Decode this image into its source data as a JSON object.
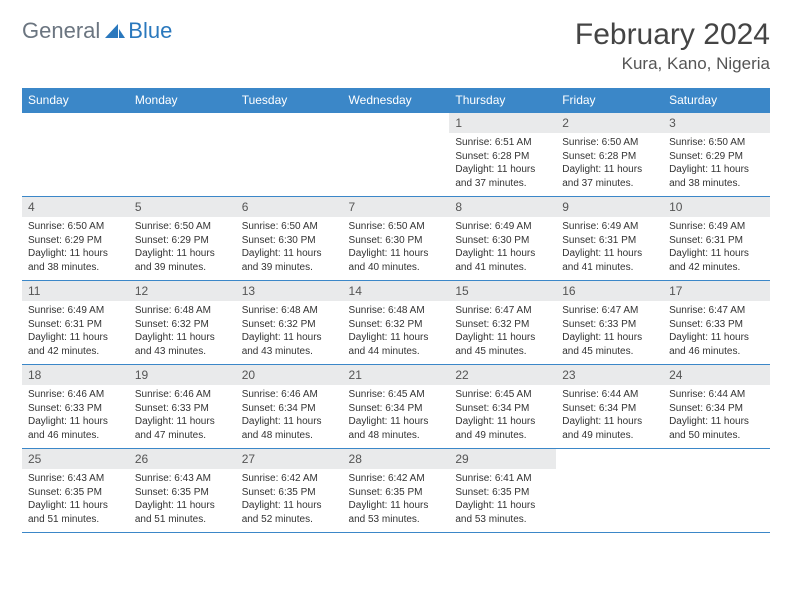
{
  "brand": {
    "part1": "General",
    "part2": "Blue"
  },
  "title": "February 2024",
  "location": "Kura, Kano, Nigeria",
  "colors": {
    "header_bg": "#3b87c8",
    "daynum_bg": "#e9eaeb",
    "brand_blue": "#2a78bd",
    "brand_gray": "#6b7580"
  },
  "weekdays": [
    "Sunday",
    "Monday",
    "Tuesday",
    "Wednesday",
    "Thursday",
    "Friday",
    "Saturday"
  ],
  "weeks": [
    [
      {
        "n": "",
        "sr": "",
        "ss": "",
        "dl": ""
      },
      {
        "n": "",
        "sr": "",
        "ss": "",
        "dl": ""
      },
      {
        "n": "",
        "sr": "",
        "ss": "",
        "dl": ""
      },
      {
        "n": "",
        "sr": "",
        "ss": "",
        "dl": ""
      },
      {
        "n": "1",
        "sr": "Sunrise: 6:51 AM",
        "ss": "Sunset: 6:28 PM",
        "dl": "Daylight: 11 hours and 37 minutes."
      },
      {
        "n": "2",
        "sr": "Sunrise: 6:50 AM",
        "ss": "Sunset: 6:28 PM",
        "dl": "Daylight: 11 hours and 37 minutes."
      },
      {
        "n": "3",
        "sr": "Sunrise: 6:50 AM",
        "ss": "Sunset: 6:29 PM",
        "dl": "Daylight: 11 hours and 38 minutes."
      }
    ],
    [
      {
        "n": "4",
        "sr": "Sunrise: 6:50 AM",
        "ss": "Sunset: 6:29 PM",
        "dl": "Daylight: 11 hours and 38 minutes."
      },
      {
        "n": "5",
        "sr": "Sunrise: 6:50 AM",
        "ss": "Sunset: 6:29 PM",
        "dl": "Daylight: 11 hours and 39 minutes."
      },
      {
        "n": "6",
        "sr": "Sunrise: 6:50 AM",
        "ss": "Sunset: 6:30 PM",
        "dl": "Daylight: 11 hours and 39 minutes."
      },
      {
        "n": "7",
        "sr": "Sunrise: 6:50 AM",
        "ss": "Sunset: 6:30 PM",
        "dl": "Daylight: 11 hours and 40 minutes."
      },
      {
        "n": "8",
        "sr": "Sunrise: 6:49 AM",
        "ss": "Sunset: 6:30 PM",
        "dl": "Daylight: 11 hours and 41 minutes."
      },
      {
        "n": "9",
        "sr": "Sunrise: 6:49 AM",
        "ss": "Sunset: 6:31 PM",
        "dl": "Daylight: 11 hours and 41 minutes."
      },
      {
        "n": "10",
        "sr": "Sunrise: 6:49 AM",
        "ss": "Sunset: 6:31 PM",
        "dl": "Daylight: 11 hours and 42 minutes."
      }
    ],
    [
      {
        "n": "11",
        "sr": "Sunrise: 6:49 AM",
        "ss": "Sunset: 6:31 PM",
        "dl": "Daylight: 11 hours and 42 minutes."
      },
      {
        "n": "12",
        "sr": "Sunrise: 6:48 AM",
        "ss": "Sunset: 6:32 PM",
        "dl": "Daylight: 11 hours and 43 minutes."
      },
      {
        "n": "13",
        "sr": "Sunrise: 6:48 AM",
        "ss": "Sunset: 6:32 PM",
        "dl": "Daylight: 11 hours and 43 minutes."
      },
      {
        "n": "14",
        "sr": "Sunrise: 6:48 AM",
        "ss": "Sunset: 6:32 PM",
        "dl": "Daylight: 11 hours and 44 minutes."
      },
      {
        "n": "15",
        "sr": "Sunrise: 6:47 AM",
        "ss": "Sunset: 6:32 PM",
        "dl": "Daylight: 11 hours and 45 minutes."
      },
      {
        "n": "16",
        "sr": "Sunrise: 6:47 AM",
        "ss": "Sunset: 6:33 PM",
        "dl": "Daylight: 11 hours and 45 minutes."
      },
      {
        "n": "17",
        "sr": "Sunrise: 6:47 AM",
        "ss": "Sunset: 6:33 PM",
        "dl": "Daylight: 11 hours and 46 minutes."
      }
    ],
    [
      {
        "n": "18",
        "sr": "Sunrise: 6:46 AM",
        "ss": "Sunset: 6:33 PM",
        "dl": "Daylight: 11 hours and 46 minutes."
      },
      {
        "n": "19",
        "sr": "Sunrise: 6:46 AM",
        "ss": "Sunset: 6:33 PM",
        "dl": "Daylight: 11 hours and 47 minutes."
      },
      {
        "n": "20",
        "sr": "Sunrise: 6:46 AM",
        "ss": "Sunset: 6:34 PM",
        "dl": "Daylight: 11 hours and 48 minutes."
      },
      {
        "n": "21",
        "sr": "Sunrise: 6:45 AM",
        "ss": "Sunset: 6:34 PM",
        "dl": "Daylight: 11 hours and 48 minutes."
      },
      {
        "n": "22",
        "sr": "Sunrise: 6:45 AM",
        "ss": "Sunset: 6:34 PM",
        "dl": "Daylight: 11 hours and 49 minutes."
      },
      {
        "n": "23",
        "sr": "Sunrise: 6:44 AM",
        "ss": "Sunset: 6:34 PM",
        "dl": "Daylight: 11 hours and 49 minutes."
      },
      {
        "n": "24",
        "sr": "Sunrise: 6:44 AM",
        "ss": "Sunset: 6:34 PM",
        "dl": "Daylight: 11 hours and 50 minutes."
      }
    ],
    [
      {
        "n": "25",
        "sr": "Sunrise: 6:43 AM",
        "ss": "Sunset: 6:35 PM",
        "dl": "Daylight: 11 hours and 51 minutes."
      },
      {
        "n": "26",
        "sr": "Sunrise: 6:43 AM",
        "ss": "Sunset: 6:35 PM",
        "dl": "Daylight: 11 hours and 51 minutes."
      },
      {
        "n": "27",
        "sr": "Sunrise: 6:42 AM",
        "ss": "Sunset: 6:35 PM",
        "dl": "Daylight: 11 hours and 52 minutes."
      },
      {
        "n": "28",
        "sr": "Sunrise: 6:42 AM",
        "ss": "Sunset: 6:35 PM",
        "dl": "Daylight: 11 hours and 53 minutes."
      },
      {
        "n": "29",
        "sr": "Sunrise: 6:41 AM",
        "ss": "Sunset: 6:35 PM",
        "dl": "Daylight: 11 hours and 53 minutes."
      },
      {
        "n": "",
        "sr": "",
        "ss": "",
        "dl": ""
      },
      {
        "n": "",
        "sr": "",
        "ss": "",
        "dl": ""
      }
    ]
  ]
}
